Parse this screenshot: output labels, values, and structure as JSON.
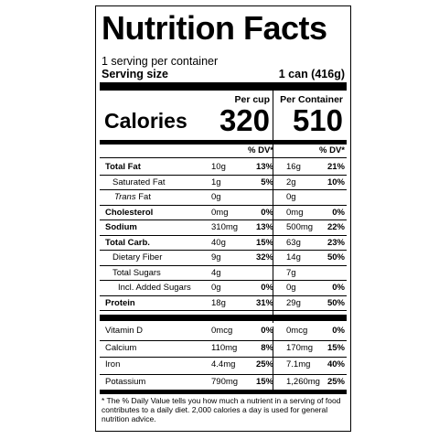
{
  "title": "Nutrition Facts",
  "servings_per_container": "1 serving per container",
  "serving_size_label": "Serving size",
  "serving_size_value": "1 can (416g)",
  "col1_header": "Per cup",
  "col2_header": "Per Container",
  "calories_label": "Calories",
  "calories_col1": "320",
  "calories_col2": "510",
  "dv_header": "% DV*",
  "nutrients": [
    {
      "label": "Total Fat",
      "amt1": "10g",
      "dv1": "13%",
      "amt2": "16g",
      "dv2": "21%"
    },
    {
      "label": "Saturated Fat",
      "amt1": "1g",
      "dv1": "5%",
      "amt2": "2g",
      "dv2": "10%"
    },
    {
      "label": "Fat",
      "prefix": "Trans",
      "amt1": "0g",
      "dv1": "",
      "amt2": "0g",
      "dv2": ""
    },
    {
      "label": "Cholesterol",
      "amt1": "0mg",
      "dv1": "0%",
      "amt2": "0mg",
      "dv2": "0%"
    },
    {
      "label": "Sodium",
      "amt1": "310mg",
      "dv1": "13%",
      "amt2": "500mg",
      "dv2": "22%"
    },
    {
      "label": "Total Carb.",
      "amt1": "40g",
      "dv1": "15%",
      "amt2": "63g",
      "dv2": "23%"
    },
    {
      "label": "Dietary Fiber",
      "amt1": "9g",
      "dv1": "32%",
      "amt2": "14g",
      "dv2": "50%"
    },
    {
      "label": "Total Sugars",
      "amt1": "4g",
      "dv1": "",
      "amt2": "7g",
      "dv2": ""
    },
    {
      "label": "Incl. Added Sugars",
      "amt1": "0g",
      "dv1": "0%",
      "amt2": "0g",
      "dv2": "0%"
    },
    {
      "label": "Protein",
      "amt1": "18g",
      "dv1": "31%",
      "amt2": "29g",
      "dv2": "50%"
    }
  ],
  "vitamins": [
    {
      "label": "Vitamin D",
      "amt1": "0mcg",
      "dv1": "0%",
      "amt2": "0mcg",
      "dv2": "0%"
    },
    {
      "label": "Calcium",
      "amt1": "110mg",
      "dv1": "8%",
      "amt2": "170mg",
      "dv2": "15%"
    },
    {
      "label": "Iron",
      "amt1": "4.4mg",
      "dv1": "25%",
      "amt2": "7.1mg",
      "dv2": "40%"
    },
    {
      "label": "Potassium",
      "amt1": "790mg",
      "dv1": "15%",
      "amt2": "1,260mg",
      "dv2": "25%"
    }
  ],
  "footnote": "* The % Daily Value tells you how much a nutrient in a serving of food contributes to a daily diet. 2,000 calories a day is used for general nutrition advice."
}
